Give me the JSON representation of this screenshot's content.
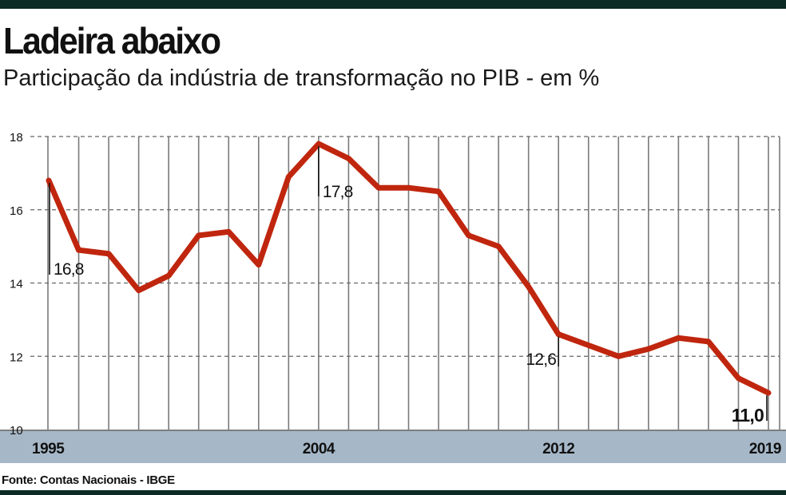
{
  "title": "Ladeira abaixo",
  "subtitle": "Participação da indústria de transformação no PIB - em %",
  "source": "Fonte: Contas Nacionais - IBGE",
  "colors": {
    "line": "#c0260e",
    "axis_band": "#a6b8c8",
    "grid": "#777777",
    "frame": "#0b2b24"
  },
  "chart_data": {
    "type": "line",
    "x": [
      1995,
      1996,
      1997,
      1998,
      1999,
      2000,
      2001,
      2002,
      2003,
      2004,
      2005,
      2006,
      2007,
      2008,
      2009,
      2010,
      2011,
      2012,
      2013,
      2014,
      2015,
      2016,
      2017,
      2018,
      2019
    ],
    "values": [
      16.8,
      14.9,
      14.8,
      13.8,
      14.2,
      15.3,
      15.4,
      14.5,
      16.9,
      17.8,
      17.4,
      16.6,
      16.6,
      16.5,
      15.3,
      15.0,
      13.9,
      12.6,
      12.3,
      12.0,
      12.2,
      12.5,
      12.4,
      11.4,
      11.0
    ],
    "ylim": [
      10,
      18
    ],
    "yticks": [
      "10",
      "12",
      "14",
      "16",
      "18"
    ],
    "xtick_labels": [
      {
        "year": 1995,
        "label": "1995"
      },
      {
        "year": 2004,
        "label": "2004"
      },
      {
        "year": 2012,
        "label": "2012"
      },
      {
        "year": 2019,
        "label": "2019"
      }
    ],
    "annotations": [
      {
        "year": 1995,
        "value": 16.8,
        "label": "16,8"
      },
      {
        "year": 2004,
        "value": 17.8,
        "label": "17,8"
      },
      {
        "year": 2012,
        "value": 12.6,
        "label": "12,6"
      },
      {
        "year": 2019,
        "value": 11.0,
        "label": "11,0"
      }
    ],
    "grid": true
  }
}
